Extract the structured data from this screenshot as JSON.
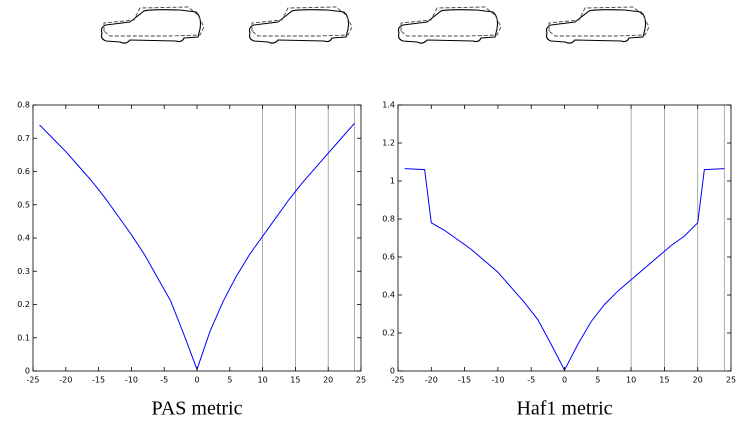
{
  "chart_data": [
    {
      "type": "line",
      "title": "PAS metric",
      "color": "#0000ff",
      "x": [
        -24,
        -22,
        -20,
        -18,
        -16,
        -14,
        -12,
        -10,
        -8,
        -6,
        -4,
        -2,
        0,
        2,
        4,
        6,
        8,
        10,
        12,
        14,
        16,
        18,
        20,
        22,
        24
      ],
      "values": [
        0.74,
        0.7,
        0.66,
        0.615,
        0.57,
        0.52,
        0.465,
        0.41,
        0.35,
        0.28,
        0.21,
        0.11,
        0.005,
        0.12,
        0.21,
        0.285,
        0.35,
        0.405,
        0.46,
        0.515,
        0.565,
        0.61,
        0.655,
        0.7,
        0.745
      ],
      "xlim": [
        -25,
        25
      ],
      "xticks": [
        -25,
        -20,
        -15,
        -10,
        -5,
        0,
        5,
        10,
        15,
        20,
        25
      ],
      "ylim": [
        0,
        0.8
      ],
      "yticks": [
        0,
        0.1,
        0.2,
        0.3,
        0.4,
        0.5,
        0.6,
        0.7,
        0.8
      ],
      "vlines": [
        10,
        15,
        20,
        24
      ]
    },
    {
      "type": "line",
      "title": "Haf1 metric",
      "color": "#0000ff",
      "x": [
        -24,
        -21,
        -20,
        -18,
        -16,
        -14,
        -12,
        -10,
        -8,
        -6,
        -4,
        -2,
        0,
        2,
        4,
        6,
        8,
        10,
        12,
        14,
        16,
        18,
        20,
        21,
        24
      ],
      "values": [
        1.065,
        1.06,
        0.78,
        0.74,
        0.69,
        0.64,
        0.58,
        0.52,
        0.44,
        0.36,
        0.27,
        0.14,
        0.005,
        0.14,
        0.26,
        0.35,
        0.42,
        0.48,
        0.54,
        0.6,
        0.66,
        0.71,
        0.78,
        1.06,
        1.065
      ],
      "xlim": [
        -25,
        25
      ],
      "xticks": [
        -25,
        -20,
        -15,
        -10,
        -5,
        0,
        5,
        10,
        15,
        20,
        25
      ],
      "ylim": [
        0,
        1.4
      ],
      "yticks": [
        0,
        0.2,
        0.4,
        0.6,
        0.8,
        1,
        1.2,
        1.4
      ],
      "vlines": [
        10,
        15,
        20,
        24
      ]
    }
  ]
}
